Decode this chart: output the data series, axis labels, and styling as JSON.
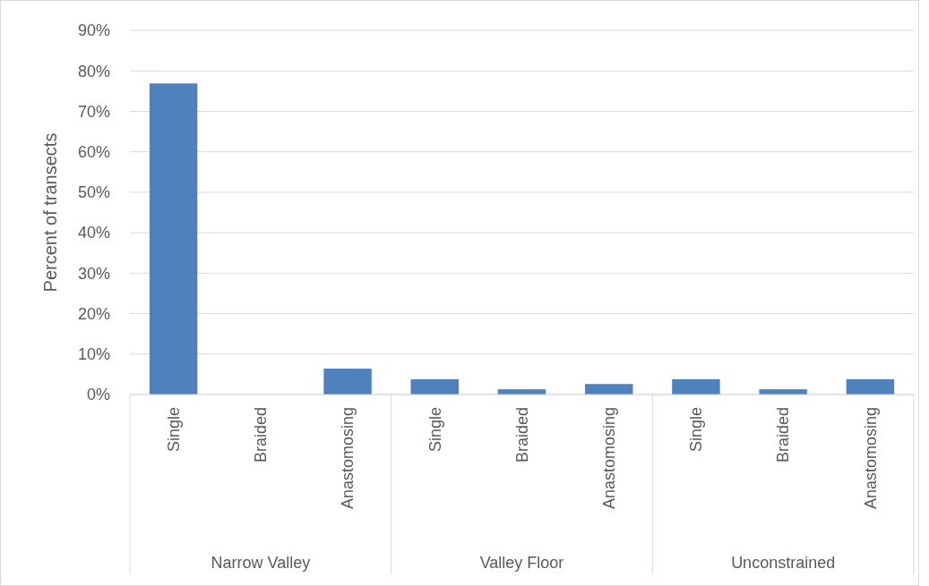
{
  "chart_data": {
    "type": "bar",
    "ylabel": "Percent of transects",
    "categories": [
      "Single",
      "Braided",
      "Anastomosing",
      "Single",
      "Braided",
      "Anastomosing",
      "Single",
      "Braided",
      "Anastomosing"
    ],
    "values": [
      76.9,
      0,
      6.4,
      3.8,
      1.3,
      2.6,
      3.8,
      1.3,
      3.8
    ],
    "color": "#4f81bd",
    "ylim": [
      0,
      90
    ],
    "yticks": [
      {
        "value": 0,
        "label": "0%"
      },
      {
        "value": 10,
        "label": "10%"
      },
      {
        "value": 20,
        "label": "20%"
      },
      {
        "value": 30,
        "label": "30%"
      },
      {
        "value": 40,
        "label": "40%"
      },
      {
        "value": 50,
        "label": "50%"
      },
      {
        "value": 60,
        "label": "60%"
      },
      {
        "value": 70,
        "label": "70%"
      },
      {
        "value": 80,
        "label": "80%"
      },
      {
        "value": 90,
        "label": "90%"
      }
    ],
    "grid": "y",
    "annotations": [
      "Narrow Valley",
      "Valley Floor",
      "Unconstrained"
    ]
  }
}
